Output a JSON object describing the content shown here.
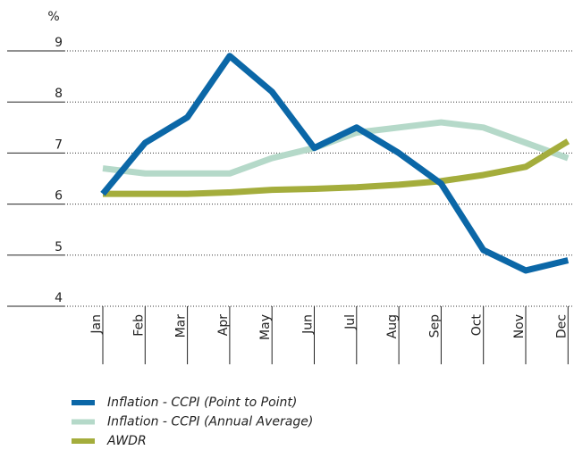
{
  "chart_data": {
    "type": "line",
    "y_label": "%",
    "categories": [
      "Jan",
      "Feb",
      "Mar",
      "Apr",
      "May",
      "Jun",
      "Jul",
      "Aug",
      "Sep",
      "Oct",
      "Nov",
      "Dec"
    ],
    "series": [
      {
        "name": "Inflation - CCPI (Point to Point)",
        "color": "#0b67a7",
        "values": [
          6.2,
          7.2,
          7.7,
          8.9,
          8.2,
          7.1,
          7.5,
          7.0,
          6.4,
          5.1,
          4.7,
          4.9
        ]
      },
      {
        "name": "Inflation - CCPI (Annual Average)",
        "color": "#b5d9c9",
        "values": [
          6.7,
          6.6,
          6.6,
          6.6,
          6.9,
          7.1,
          7.4,
          7.5,
          7.6,
          7.5,
          7.2,
          6.9
        ]
      },
      {
        "name": "AWDR",
        "color": "#a4ad3c",
        "values": [
          6.2,
          6.2,
          6.2,
          6.23,
          6.28,
          6.3,
          6.33,
          6.38,
          6.45,
          6.57,
          6.73,
          7.23
        ]
      }
    ],
    "ylim": [
      4,
      9
    ],
    "yticks": [
      4,
      5,
      6,
      7,
      8,
      9
    ],
    "grid": true
  }
}
